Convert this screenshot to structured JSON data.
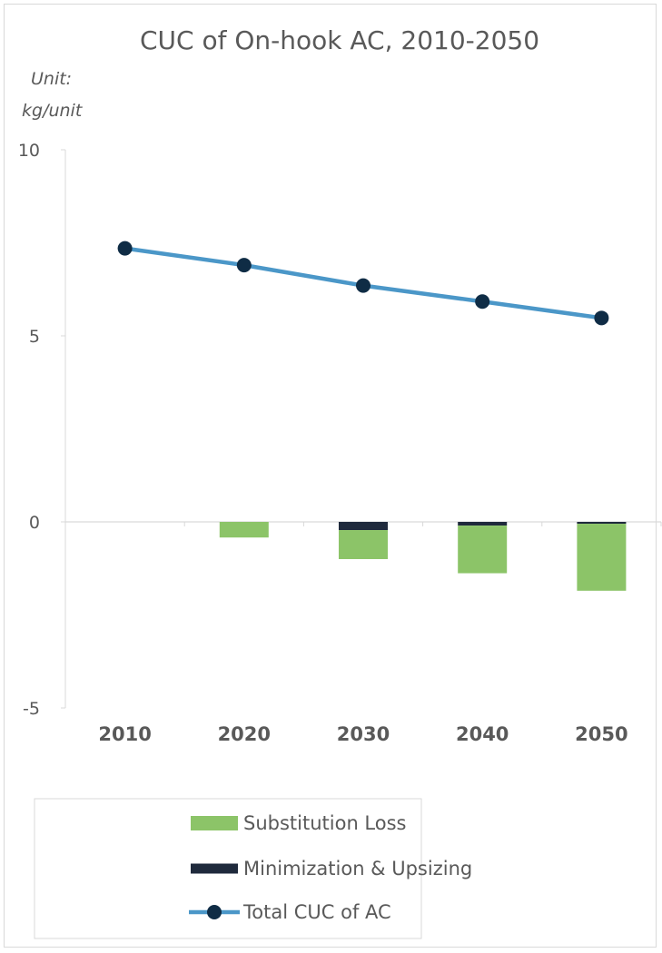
{
  "chart_data": {
    "type": "bar",
    "title": "CUC of On-hook AC, 2010-2050",
    "unit_line1": "Unit:",
    "unit_line2": "kg/unit",
    "categories": [
      "2010",
      "2020",
      "2030",
      "2040",
      "2050"
    ],
    "ylim": [
      -5,
      10
    ],
    "yticks": [
      10,
      5,
      0,
      -5
    ],
    "stacked": true,
    "series": [
      {
        "name": "Minimization & Upsizing",
        "type": "bar",
        "color": "#1f2a3c",
        "values": [
          0,
          0,
          -0.22,
          -0.1,
          -0.05
        ]
      },
      {
        "name": "Substitution Loss",
        "type": "bar",
        "color": "#8cc468",
        "values": [
          0,
          -0.42,
          -0.78,
          -1.28,
          -1.8
        ]
      },
      {
        "name": "Total CUC of AC",
        "type": "line",
        "color": "#4b97c8",
        "marker_color": "#0f2c45",
        "values": [
          7.35,
          6.9,
          6.35,
          5.92,
          5.48
        ]
      }
    ],
    "legend": {
      "position": "bottom",
      "entries": [
        "Substitution Loss",
        "Minimization & Upsizing",
        "Total CUC of AC"
      ]
    },
    "grid": false
  }
}
